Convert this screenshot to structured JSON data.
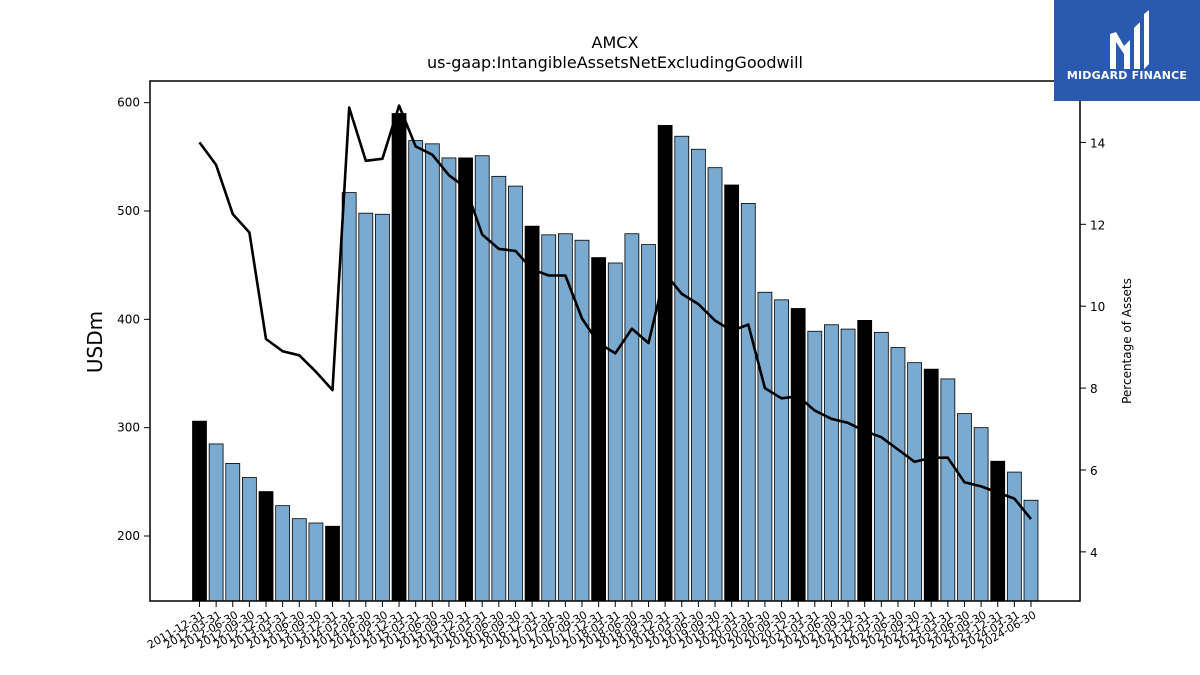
{
  "brand": {
    "name": "MIDGARD FINANCE",
    "color": "#2a5ab0"
  },
  "chart_data": {
    "type": "bar",
    "title": "AMCX",
    "subtitle": "us-gaap:IntangibleAssetsNetExcludingGoodwill",
    "ylabel": "USDm",
    "y2label": "Percentage of Assets",
    "ylim": [
      140,
      620
    ],
    "y2lim": [
      2.8,
      15.5
    ],
    "yticks": [
      200,
      300,
      400,
      500,
      600
    ],
    "y2ticks": [
      4,
      6,
      8,
      10,
      12,
      14
    ],
    "bar_color": "#7aaad0",
    "highlight_color": "#000000",
    "line_color": "#000000",
    "categories": [
      "2011-12-31",
      "2012-03-31",
      "2012-06-30",
      "2012-09-30",
      "2012-12-31",
      "2013-03-31",
      "2013-06-30",
      "2013-09-30",
      "2013-12-31",
      "2014-03-31",
      "2014-06-30",
      "2014-09-30",
      "2014-12-31",
      "2015-03-31",
      "2015-06-30",
      "2015-09-30",
      "2015-12-31",
      "2016-03-31",
      "2016-06-30",
      "2016-09-30",
      "2016-12-31",
      "2017-03-31",
      "2017-06-30",
      "2017-09-30",
      "2017-12-31",
      "2018-03-31",
      "2018-06-30",
      "2018-09-30",
      "2018-12-31",
      "2019-03-31",
      "2019-06-30",
      "2019-09-30",
      "2019-12-31",
      "2020-03-31",
      "2020-06-30",
      "2020-09-30",
      "2020-12-31",
      "2021-03-31",
      "2021-06-30",
      "2021-09-30",
      "2021-12-31",
      "2022-03-31",
      "2022-06-30",
      "2022-09-30",
      "2022-12-31",
      "2023-03-31",
      "2023-06-30",
      "2023-09-30",
      "2023-12-31",
      "2024-03-31",
      "2024-06-30"
    ],
    "visible_xticks": [
      "2011-12-31",
      "2012-03-31",
      "2012-06-30",
      "2012-09-30",
      "2012-12-31",
      "2013-03-31",
      "2013-06-30",
      "2013-09-30",
      "2013-12-31",
      "2014-03-31",
      "2014-06-30",
      "2014-09-30",
      "2014-12-31",
      "2015-03-31",
      "2015-06-30",
      "2015-09-30",
      "2015-12-31",
      "2016-03-31",
      "2016-06-30",
      "2016-09-30",
      "2016-12-31",
      "2017-03-31",
      "2017-06-30",
      "2017-09-30",
      "2017-12-31",
      "2018-03-31",
      "2018-06-30",
      "2018-09-30",
      "2018-12-31",
      "2019-03-31",
      "2019-06-30",
      "2019-09-30",
      "2019-12-31",
      "2020-03-31",
      "2020-06-30",
      "2020-09-30",
      "2020-12-31",
      "2021-03-31",
      "2021-06-30",
      "2021-09-30",
      "2021-12-31",
      "2022-03-31",
      "2022-06-30",
      "2022-09-30",
      "2022-12-31",
      "2023-03-31",
      "2023-06-30",
      "2023-09-30",
      "2023-12-31",
      "2024-03-31",
      "2024-06-30"
    ],
    "series": [
      {
        "type": "bar",
        "values": [
          306,
          285,
          267,
          254,
          241,
          228,
          216,
          212,
          209,
          517,
          498,
          497,
          590,
          565,
          562,
          549,
          549,
          551,
          532,
          523,
          486,
          478,
          479,
          473,
          457,
          452,
          479,
          469,
          579,
          569,
          557,
          540,
          524,
          507,
          425,
          418,
          410,
          389,
          395,
          391,
          399,
          388,
          374,
          360,
          354,
          345,
          313,
          300,
          269,
          259,
          233
        ],
        "highlighted": [
          true,
          false,
          false,
          false,
          true,
          false,
          false,
          false,
          true,
          false,
          false,
          false,
          true,
          false,
          false,
          false,
          true,
          false,
          false,
          false,
          true,
          false,
          false,
          false,
          true,
          false,
          false,
          false,
          true,
          false,
          false,
          false,
          true,
          false,
          false,
          false,
          true,
          false,
          false,
          false,
          true,
          false,
          false,
          false,
          true,
          false,
          false,
          false,
          true,
          false,
          false
        ]
      },
      {
        "type": "line",
        "axis": "right",
        "values": [
          14.0,
          13.45,
          12.25,
          11.8,
          9.2,
          8.9,
          8.8,
          8.4,
          7.95,
          14.85,
          13.55,
          13.6,
          14.9,
          13.9,
          13.7,
          13.2,
          12.9,
          11.75,
          11.4,
          11.35,
          10.9,
          10.75,
          10.75,
          9.7,
          9.1,
          8.85,
          9.45,
          9.1,
          10.8,
          10.3,
          10.05,
          9.65,
          9.4,
          9.55,
          8.0,
          7.75,
          7.8,
          7.45,
          7.25,
          7.15,
          6.95,
          6.8,
          6.5,
          6.2,
          6.3,
          6.3,
          5.7,
          5.6,
          5.45,
          5.3,
          4.8
        ]
      }
    ]
  }
}
